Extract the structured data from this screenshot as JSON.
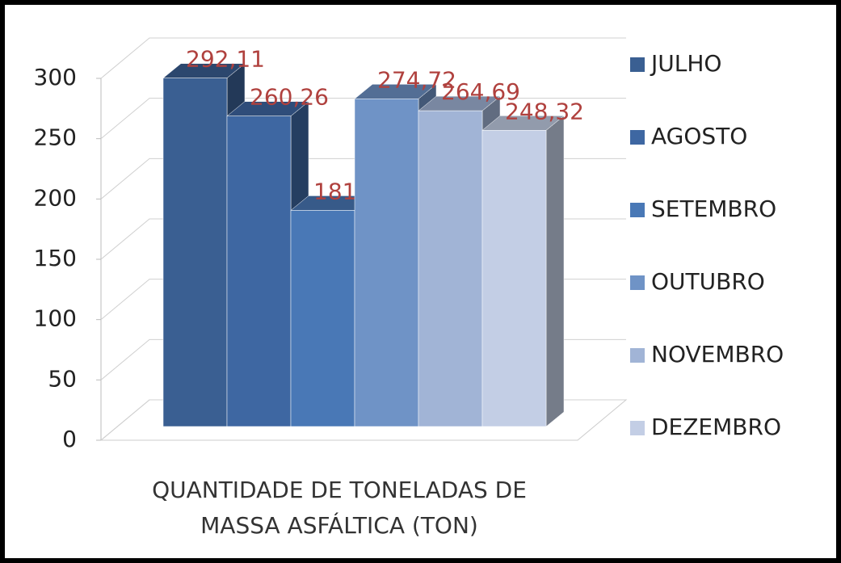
{
  "chart_data": {
    "type": "bar3d",
    "categories": [
      "QUANTIDADE DE TONELADAS DE MASSA ASFÁLTICA (TON)"
    ],
    "series": [
      {
        "name": "JULHO",
        "color": "#3a5f92",
        "values": [
          292.11
        ],
        "value_labels": [
          "292,11"
        ]
      },
      {
        "name": "AGOSTO",
        "color": "#3e67a2",
        "values": [
          260.26
        ],
        "value_labels": [
          "260,26"
        ]
      },
      {
        "name": "SETEMBRO",
        "color": "#4978b6",
        "values": [
          181.2
        ],
        "value_labels": [
          "181,20"
        ]
      },
      {
        "name": "OUTUBRO",
        "color": "#6f93c6",
        "values": [
          274.72
        ],
        "value_labels": [
          "274,72"
        ]
      },
      {
        "name": "NOVEMBRO",
        "color": "#a1b4d6",
        "values": [
          264.69
        ],
        "value_labels": [
          "264,69"
        ]
      },
      {
        "name": "DEZEMBRO",
        "color": "#c3cee5",
        "values": [
          248.32
        ],
        "value_labels": [
          "248,32"
        ]
      }
    ],
    "ylim": [
      0,
      300
    ],
    "yticks": [
      0,
      50,
      100,
      150,
      200,
      250,
      300
    ],
    "grid": true,
    "legend": "right"
  }
}
